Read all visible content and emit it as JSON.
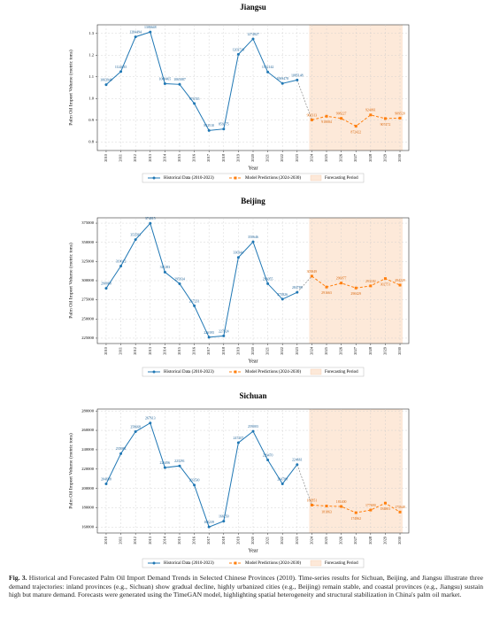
{
  "chart_data": [
    {
      "type": "line",
      "title": "Jiangsu",
      "xlabel": "Year",
      "ylabel": "Palm Oil Import Volume (metric tons)",
      "x": [
        2010,
        2011,
        2012,
        2013,
        2014,
        2015,
        2016,
        2017,
        2018,
        2019,
        2020,
        2021,
        2022,
        2023,
        2024,
        2025,
        2026,
        2027,
        2028,
        2029,
        2030
      ],
      "xlim": [
        2009.4,
        2030.6
      ],
      "ylim": [
        760000,
        1340000
      ],
      "yticks": [
        {
          "value": 800000,
          "label": "0.8"
        },
        {
          "value": 900000,
          "label": "0.9"
        },
        {
          "value": 1000000,
          "label": "1.0"
        },
        {
          "value": 1100000,
          "label": "1.1"
        },
        {
          "value": 1200000,
          "label": "1.2"
        },
        {
          "value": 1300000,
          "label": "1.3"
        }
      ],
      "grid": true,
      "forecast_label": "Forecasting Period",
      "forecast_color": "#fde9d9",
      "series": [
        {
          "name": "Historical Data (2010-2023)",
          "color": "#1f77b4",
          "values": [
            1063940,
            1124035,
            1284494,
            1306648,
            1068465,
            1065087,
            976745,
            852510,
            859175,
            1203713,
            1274827,
            1122142,
            1069478,
            1085148,
            null,
            null,
            null,
            null,
            null,
            null,
            null
          ]
        },
        {
          "name": "Model Predictions (2024-2030)",
          "color": "#ff7f0e",
          "values": [
            null,
            null,
            null,
            null,
            null,
            null,
            null,
            null,
            null,
            null,
            null,
            null,
            null,
            null,
            901313,
            918084,
            908227,
            872422,
            924061,
            907472,
            909520
          ]
        }
      ]
    },
    {
      "type": "line",
      "title": "Beijing",
      "xlabel": "Year",
      "ylabel": "Palm Oil Import Volume (metric tons)",
      "x": [
        2010,
        2011,
        2012,
        2013,
        2014,
        2015,
        2016,
        2017,
        2018,
        2019,
        2020,
        2021,
        2022,
        2023,
        2024,
        2025,
        2026,
        2027,
        2028,
        2029,
        2030
      ],
      "xlim": [
        2009.4,
        2030.6
      ],
      "ylim": [
        218000,
        382000
      ],
      "yticks": [
        225000,
        250000,
        275000,
        300000,
        325000,
        350000,
        375000
      ],
      "grid": true,
      "forecast_label": "Forecasting Period",
      "forecast_color": "#fde9d9",
      "series": [
        {
          "name": "Historical Data (2010-2023)",
          "color": "#1f77b4",
          "values": [
            290068,
            319012,
            353583,
            374815,
            311183,
            295934,
            267231,
            226195,
            227924,
            330344,
            350646,
            296055,
            275826,
            284780,
            null,
            null,
            null,
            null,
            null,
            null,
            null
          ]
        },
        {
          "name": "Model Predictions (2024-2030)",
          "color": "#ff7f0e",
          "values": [
            null,
            null,
            null,
            null,
            null,
            null,
            null,
            null,
            null,
            null,
            null,
            null,
            null,
            null,
            305849,
            291663,
            296877,
            290429,
            293182,
            302751,
            294229
          ]
        }
      ]
    },
    {
      "type": "line",
      "title": "Sichuan",
      "xlabel": "Year",
      "ylabel": "Palm Oil Import Volume (metric tons)",
      "x": [
        2010,
        2011,
        2012,
        2013,
        2014,
        2015,
        2016,
        2017,
        2018,
        2019,
        2020,
        2021,
        2022,
        2023,
        2024,
        2025,
        2026,
        2027,
        2028,
        2029,
        2030
      ],
      "xlim": [
        2009.4,
        2030.6
      ],
      "ylim": [
        154000,
        282000
      ],
      "yticks": [
        160000,
        180000,
        200000,
        220000,
        240000,
        260000,
        280000
      ],
      "grid": true,
      "forecast_label": "Forecasting Period",
      "forecast_color": "#fde9d9",
      "series": [
        {
          "name": "Historical Data (2010-2023)",
          "color": "#1f77b4",
          "values": [
            204688,
            235982,
            258668,
            267613,
            221496,
            223291,
            203530,
            160239,
            166250,
            247207,
            259003,
            229470,
            204788,
            224661,
            null,
            null,
            null,
            null,
            null,
            null,
            null
          ]
        },
        {
          "name": "Model Predictions (2024-2030)",
          "color": "#ff7f0e",
          "values": [
            null,
            null,
            null,
            null,
            null,
            null,
            null,
            null,
            null,
            null,
            null,
            null,
            null,
            null,
            182851,
            181863,
            181400,
            174962,
            177690,
            184861,
            175648
          ]
        }
      ]
    }
  ],
  "caption": {
    "label": "Fig. 3.",
    "text": "Historical and Forecasted Palm Oil Import Demand Trends in Selected Chinese Provinces (2010). Time-series results for Sichuan, Beijing, and Jiangsu illustrate three demand trajectories: inland provinces (e.g., Sichuan) show gradual decline, highly urbanized cities (e.g., Beijing) remain stable, and coastal provinces (e.g., Jiangsu) sustain high but mature demand. Forecasts were generated using the TimeGAN model, highlighting spatial heterogeneity and structural stabilization in China's palm oil market."
  }
}
